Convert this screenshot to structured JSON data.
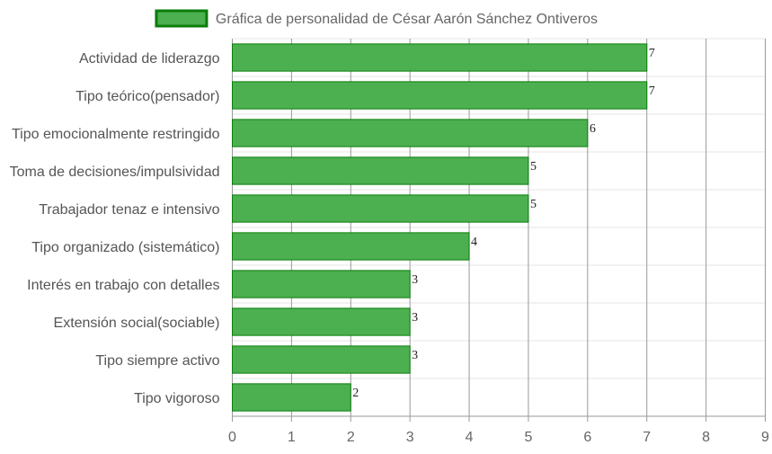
{
  "chart_data": {
    "type": "bar",
    "orientation": "horizontal",
    "title": "",
    "xlabel": "",
    "ylabel": "",
    "categories": [
      "Actividad de liderazgo",
      "Tipo teórico(pensador)",
      "Tipo emocionalmente restringido",
      "Toma de decisiones/impulsividad",
      "Trabajador tenaz e intensivo",
      "Tipo organizado (sistemático)",
      "Interés en trabajo con detalles",
      "Extensión social(sociable)",
      "Tipo siempre activo",
      "Tipo vigoroso"
    ],
    "series": [
      {
        "name": "Gráfica de personalidad de César Aarón Sánchez Ontiveros",
        "values": [
          7,
          7,
          6,
          5,
          5,
          4,
          3,
          3,
          3,
          2
        ],
        "color": "#4caf50",
        "border_color": "#0a7d0a"
      }
    ],
    "data_labels": [
      "7",
      "7",
      "6",
      "5",
      "5",
      "4",
      "3",
      "3",
      "3",
      "2"
    ],
    "xlim": [
      0,
      9
    ],
    "x_ticks": [
      "0",
      "1",
      "2",
      "3",
      "4",
      "5",
      "6",
      "7",
      "8",
      "9"
    ],
    "grid": true,
    "legend_position": "top",
    "colors": {
      "grid": "#e6e6e6",
      "grid_major": "#999999",
      "axis": "#999999"
    }
  }
}
